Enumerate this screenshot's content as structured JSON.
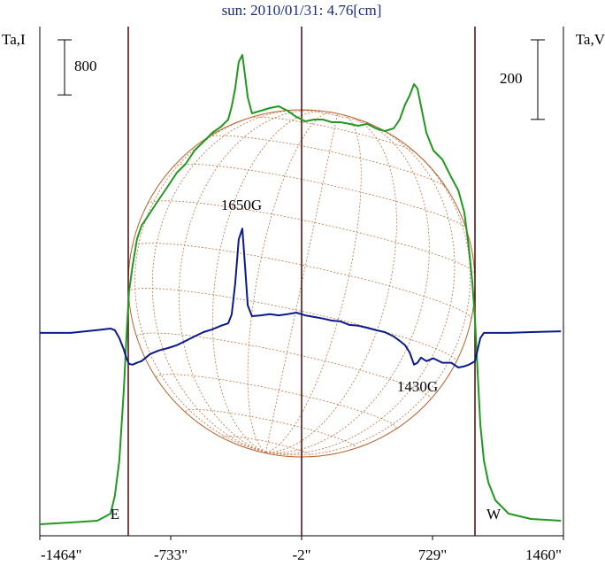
{
  "chart_data": {
    "type": "line",
    "title": "sun: 2010/01/31: 4.76[cm]",
    "y_label": "Ta,I",
    "y2_label": "Ta,V",
    "annotations": [
      "1650G",
      "1430G",
      "E",
      "W"
    ],
    "scale_bars": [
      {
        "value": 800,
        "axis": "y"
      },
      {
        "value": 200,
        "axis": "y2"
      }
    ],
    "xlim": [
      -1464,
      1460
    ],
    "xticks": [
      {
        "value": -1464,
        "label": "-1464\""
      },
      {
        "value": -733,
        "label": "-733\""
      },
      {
        "value": -2,
        "label": "-2\""
      },
      {
        "value": 729,
        "label": "729\""
      },
      {
        "value": 1460,
        "label": "1460\""
      }
    ],
    "ylim": [
      0,
      7400
    ],
    "y2lim": [
      -510,
      770
    ],
    "x": [
      -1464,
      -1292,
      -1143,
      -1069,
      -1045,
      -1020,
      -995,
      -980,
      -966,
      -946,
      -921,
      -896,
      -847,
      -798,
      -748,
      -699,
      -649,
      -600,
      -550,
      -501,
      -452,
      -412,
      -392,
      -373,
      -353,
      -333,
      -318,
      -303,
      -279,
      -229,
      -180,
      -130,
      -81,
      -32,
      18,
      67,
      117,
      166,
      215,
      265,
      314,
      364,
      413,
      462,
      512,
      546,
      576,
      601,
      626,
      645,
      665,
      695,
      734,
      784,
      833,
      873,
      907,
      932,
      952,
      966,
      981,
      996,
      1016,
      1041,
      1080,
      1154,
      1278,
      1446
    ],
    "series": [
      {
        "name": "I",
        "color": "#1f9a1f",
        "axis": "y",
        "values": [
          167,
          193,
          219,
          322,
          579,
          1094,
          2124,
          2896,
          3539,
          3925,
          4311,
          4505,
          4698,
          4891,
          5084,
          5277,
          5405,
          5598,
          5727,
          5856,
          5946,
          6049,
          6242,
          6499,
          6885,
          6988,
          6692,
          6371,
          6139,
          6178,
          6216,
          6242,
          6178,
          6088,
          6023,
          6049,
          6049,
          6010,
          6010,
          5985,
          5959,
          5985,
          5920,
          5881,
          5920,
          6049,
          6268,
          6396,
          6564,
          6499,
          6242,
          5856,
          5598,
          5470,
          5212,
          5019,
          4698,
          4183,
          3668,
          3153,
          2381,
          1609,
          1094,
          772,
          515,
          322,
          245,
          219
        ]
      },
      {
        "name": "V",
        "color": "#0a1a8c",
        "axis": "y2",
        "values": [
          0,
          0,
          7,
          11,
          7,
          -13,
          -42,
          -64,
          -78,
          -80,
          -75,
          -71,
          -53,
          -44,
          -38,
          -31,
          -20,
          -9,
          2,
          9,
          18,
          24,
          47,
          124,
          235,
          262,
          169,
          69,
          42,
          44,
          47,
          44,
          47,
          51,
          44,
          40,
          36,
          31,
          29,
          20,
          18,
          13,
          7,
          2,
          -9,
          -20,
          -31,
          -49,
          -80,
          -75,
          -62,
          -71,
          -64,
          -75,
          -75,
          -87,
          -84,
          -80,
          -75,
          -71,
          -42,
          -13,
          0,
          0,
          0,
          0,
          2,
          4
        ]
      }
    ]
  }
}
